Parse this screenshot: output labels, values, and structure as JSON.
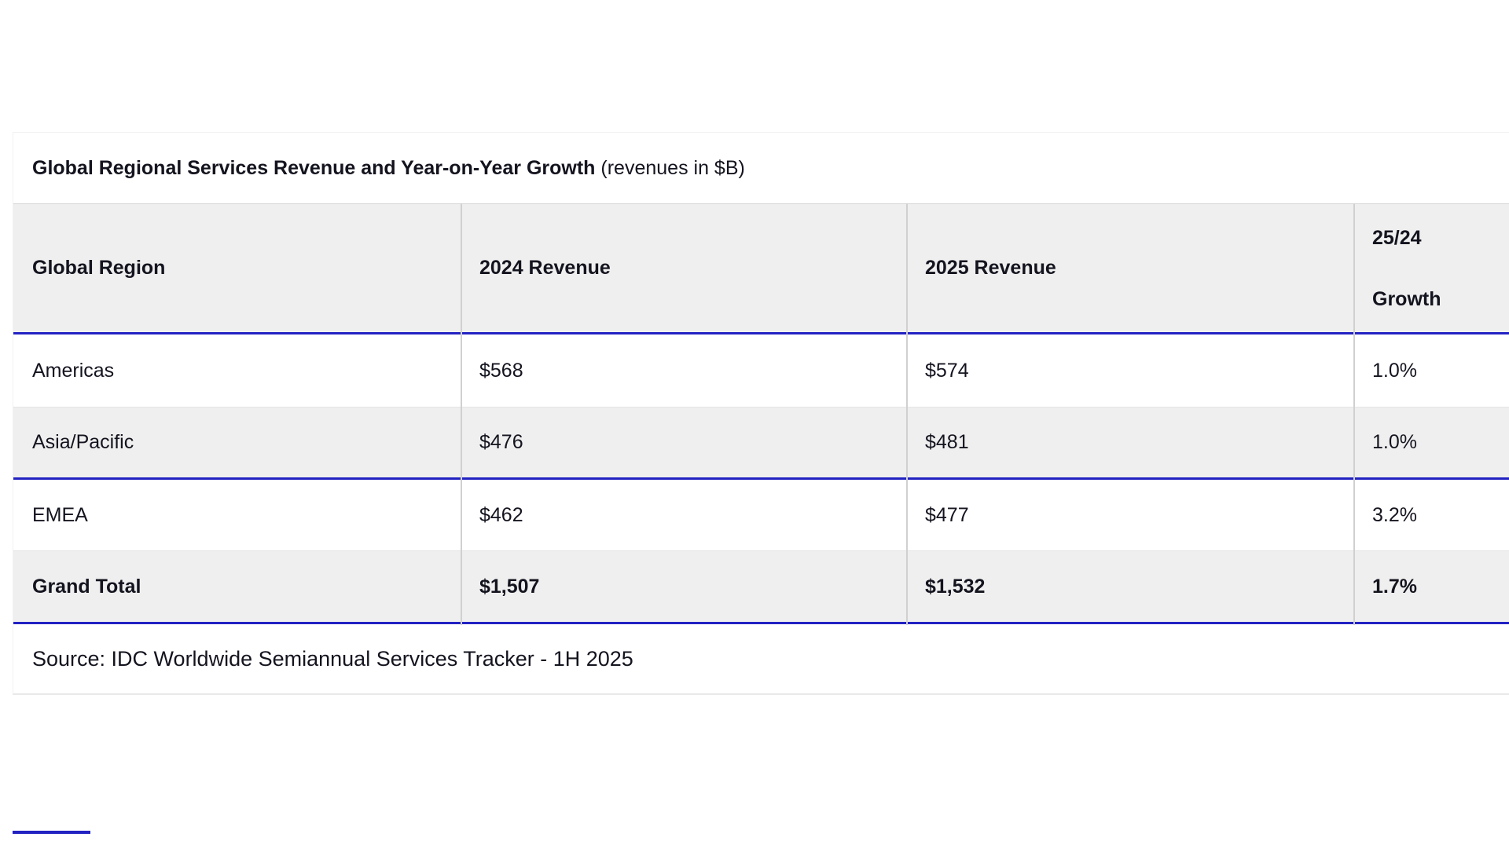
{
  "title": {
    "bold": "Global Regional Services Revenue and Year-on-Year Growth",
    "normal": "(revenues in $B)"
  },
  "table": {
    "columns": [
      "Global Region",
      "2024 Revenue",
      "2025 Revenue",
      "25/24 Growth"
    ],
    "growth_header_lines": {
      "line1": "25/24",
      "line2": "Growth"
    },
    "rows": [
      {
        "region": "Americas",
        "rev2024": "$568",
        "rev2025": "$574",
        "growth": "1.0%"
      },
      {
        "region": "Asia/Pacific",
        "rev2024": "$476",
        "rev2025": "$481",
        "growth": "1.0%"
      },
      {
        "region": "EMEA",
        "rev2024": "$462",
        "rev2025": "$477",
        "growth": "3.2%"
      },
      {
        "region": "Grand Total",
        "rev2024": "$1,507",
        "rev2025": "$1,532",
        "growth": "1.7%"
      }
    ]
  },
  "source": "Source: IDC Worldwide Semiannual Services Tracker - 1H 2025",
  "colors": {
    "rule_blue": "#2222c2",
    "row_gray": "#efefef",
    "divider_gray": "#d0d0d0",
    "text": "#14141f"
  }
}
